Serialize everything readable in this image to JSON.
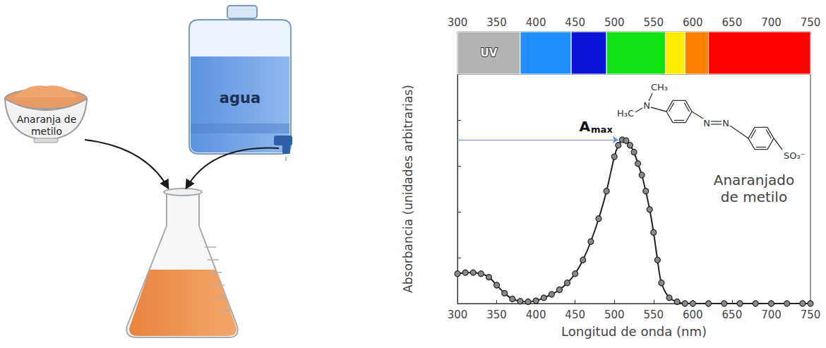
{
  "diagram": {
    "bowl": {
      "label": "Anaranja de metilo"
    },
    "jug": {
      "label": "agua"
    }
  },
  "chart_data": {
    "type": "line",
    "x_label": "Longitud de onda (nm)",
    "y_label": "Absorbancia (unidades arbitrarias)",
    "x": [
      300,
      310,
      320,
      330,
      340,
      350,
      360,
      370,
      380,
      390,
      400,
      410,
      420,
      430,
      440,
      450,
      460,
      470,
      480,
      490,
      500,
      505,
      510,
      515,
      520,
      525,
      530,
      535,
      540,
      545,
      550,
      555,
      560,
      570,
      580,
      590,
      600,
      620,
      640,
      660,
      680,
      700,
      720,
      740,
      750
    ],
    "values": [
      0.13,
      0.135,
      0.135,
      0.13,
      0.115,
      0.08,
      0.045,
      0.02,
      0.01,
      0.008,
      0.012,
      0.025,
      0.04,
      0.06,
      0.09,
      0.13,
      0.19,
      0.27,
      0.37,
      0.49,
      0.64,
      0.69,
      0.714,
      0.71,
      0.69,
      0.66,
      0.61,
      0.56,
      0.49,
      0.41,
      0.31,
      0.19,
      0.09,
      0.025,
      0.008,
      0,
      0,
      0,
      0,
      0,
      0,
      0,
      0,
      0,
      0
    ],
    "color": "#222222",
    "marker": "circle",
    "line_style": "solid",
    "xlim": [
      300,
      750
    ],
    "xticks": [
      300,
      350,
      400,
      450,
      500,
      550,
      600,
      650,
      700,
      750
    ],
    "ylim": [
      0,
      1
    ],
    "yticks": [
      0,
      0.2,
      0.4,
      0.6,
      0.8,
      1
    ],
    "tick_labels": "x",
    "grid": false,
    "bands": [
      {
        "label": "UV",
        "start": 300,
        "end": 380,
        "color": "#b3b3b3"
      },
      {
        "start": 380,
        "end": 445,
        "color": "#1e90ff"
      },
      {
        "start": 445,
        "end": 490,
        "color": "#0a14d8"
      },
      {
        "start": 490,
        "end": 565,
        "color": "#11e011"
      },
      {
        "start": 565,
        "end": 590,
        "color": "#ffee00"
      },
      {
        "start": 590,
        "end": 620,
        "color": "#ff7f00"
      },
      {
        "start": 620,
        "end": 750,
        "color": "#ff0000"
      }
    ],
    "annotation": {
      "text": "A",
      "subscript": "max",
      "x": [
        300,
        505
      ],
      "y": 0.714
    },
    "structure": {
      "name": "Anaranjado de metilo",
      "methyl_top": "CH₃",
      "methyl_left": "H₃C",
      "amine": "N",
      "azo": [
        "N",
        "N"
      ],
      "sulfonate": "SO₃⁻"
    }
  }
}
